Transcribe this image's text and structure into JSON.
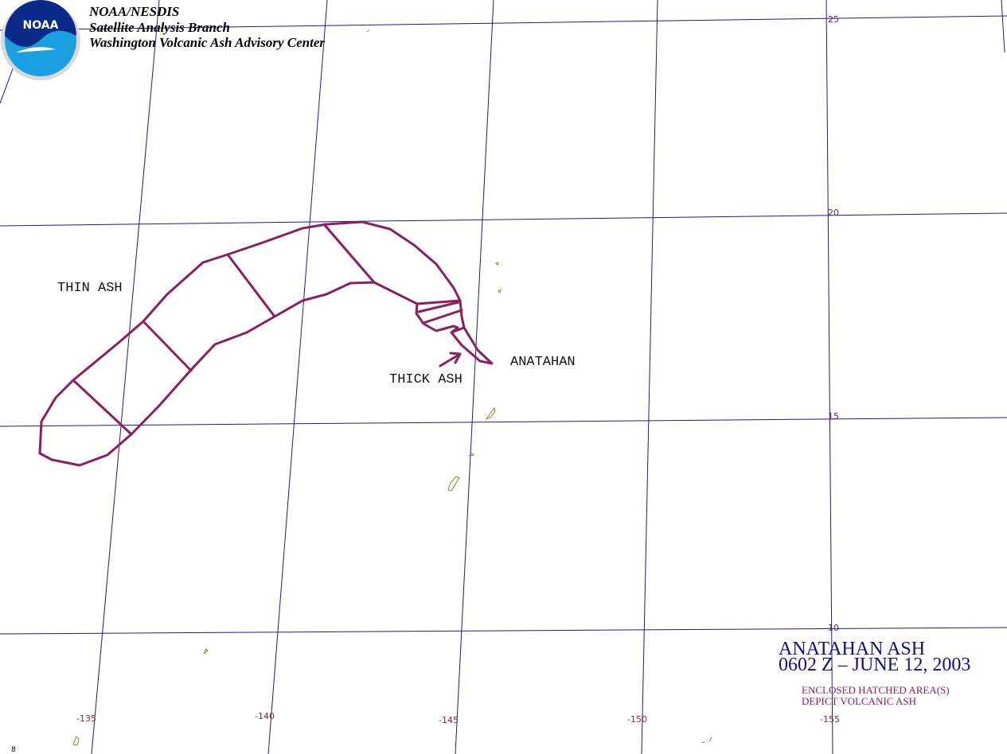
{
  "header": {
    "lines": [
      "NOAA/NESDIS",
      "Satellite Analysis Branch",
      "Washington Volcanic Ash Advisory Center"
    ],
    "logo_text": "NOAA"
  },
  "map_labels": {
    "thin_ash": "THIN ASH",
    "thick_ash": "THICK ASH",
    "volcano": "ANATAHAN"
  },
  "latitude_labels": [
    25,
    20,
    15,
    10
  ],
  "longitude_labels": [
    -135,
    -140,
    -145,
    -150,
    -155
  ],
  "title": {
    "line1": "ANATAHAN ASH",
    "line2": "0602 Z – JUNE 12, 2003"
  },
  "legend": {
    "lines": [
      "ENCLOSED HATCHED AREA(S)",
      "DEPICT VOLCANIC ASH"
    ]
  },
  "corner_mark": 8
}
